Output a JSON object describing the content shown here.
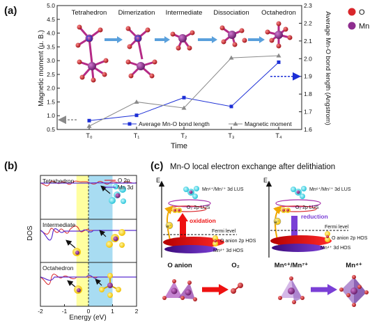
{
  "panel_a": {
    "label": "(a)",
    "stages": [
      "Tetrahedron",
      "Dimerization",
      "Intermediate",
      "Dissociation",
      "Octahedron"
    ],
    "legend_elements": [
      {
        "symbol": "O",
        "color": "#d9262b"
      },
      {
        "symbol": "Mn",
        "color": "#8e2d8f"
      }
    ]
  },
  "panel_b": {
    "label": "(b)",
    "subpanels": [
      "Tetrahedron",
      "Intermediate",
      "Octahedron"
    ]
  },
  "panel_c": {
    "label": "(c)",
    "title": "Mn-O local electron exchange after delithiation",
    "axis_letter": "E",
    "left": {
      "lus_label": "Mn⁶⁺/Mn⁷⁺ 3d LUS",
      "o2_label": "O₂ 2p LUS",
      "process": "oxidation",
      "fermi": "Fermi level",
      "hos_o": "O anion 2p HOS",
      "hos_mn": "Mn⁴⁺ 3d HOS",
      "electron": "e⁻",
      "from_label": "O anion",
      "to_label": "O₂"
    },
    "right": {
      "lus_label": "Mn⁶⁺/Mn⁷⁺ 3d LUS",
      "o2_label": "O₂ 2p LUS",
      "process": "reduction",
      "fermi": "Fermi level",
      "hos_o": "O anion 2p HOS",
      "hos_mn": "Mn⁴⁺ 3d HOS",
      "electron": "e⁻",
      "from_label": "Mn⁶⁺/Mn⁷⁺",
      "to_label": "Mn⁴⁺"
    }
  },
  "chart_data": [
    {
      "type": "line",
      "x": [
        "T₀",
        "T₁",
        "T₂",
        "T₃",
        "T₄"
      ],
      "xlabel": "Time",
      "ylabel": "Magnetic moment (μ. B.)",
      "y2label": "Average Mn-O bond length (Angstrom)",
      "ylim": [
        0.5,
        5.0
      ],
      "y2lim": [
        1.6,
        2.3
      ],
      "yticks": [
        0.5,
        1.0,
        1.5,
        2.0,
        2.5,
        3.0,
        3.5,
        4.0,
        4.5,
        5.0
      ],
      "y2ticks": [
        1.6,
        1.7,
        1.8,
        1.9,
        2.0,
        2.1,
        2.2,
        2.3
      ],
      "series": [
        {
          "name": "Average Mn-O bond length",
          "axis": "right",
          "color": "#1c2fd6",
          "marker": "square",
          "values": [
            1.65,
            1.68,
            1.78,
            1.73,
            1.98
          ]
        },
        {
          "name": "Magnetic moment",
          "axis": "left",
          "color": "#8a8a8a",
          "marker": "triangle",
          "values": [
            0.62,
            1.5,
            1.28,
            3.1,
            3.18
          ]
        }
      ],
      "annotations": [
        {
          "type": "dashed-arrow",
          "color": "#8a8a8a",
          "axis": "left",
          "y": 0.85,
          "direction": "left"
        },
        {
          "type": "dashed-arrow",
          "color": "#1c2fd6",
          "axis": "right",
          "y": 1.9,
          "direction": "right"
        }
      ],
      "legend": "bottom"
    },
    {
      "type": "line",
      "xlabel": "Energy (eV)",
      "ylabel": "DOS",
      "xlim": [
        -2,
        2
      ],
      "xticks": [
        -2,
        -1,
        0,
        1,
        2
      ],
      "shaded_regions": [
        {
          "from": -0.5,
          "to": 0.0,
          "color": "#ffffa0"
        },
        {
          "from": 0.0,
          "to": 1.0,
          "color": "#a8dcf2"
        }
      ],
      "series": [
        {
          "name": "O 2p",
          "color": "#d9262b"
        },
        {
          "name": "Mn 3d",
          "color": "#5b2fd0"
        }
      ],
      "legend": "top-right"
    }
  ]
}
